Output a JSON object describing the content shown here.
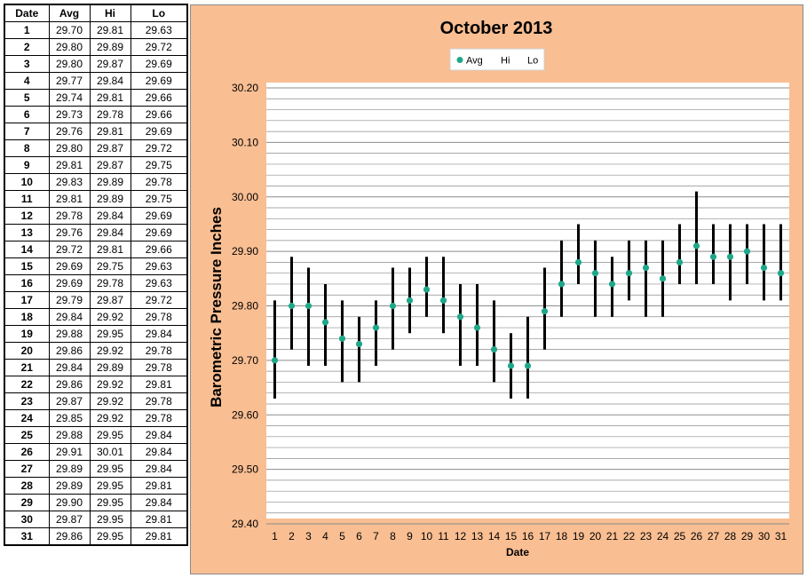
{
  "table": {
    "headers": [
      "Date",
      "Avg",
      "Hi",
      "Lo"
    ],
    "rows": [
      [
        "1",
        "29.70",
        "29.81",
        "29.63"
      ],
      [
        "2",
        "29.80",
        "29.89",
        "29.72"
      ],
      [
        "3",
        "29.80",
        "29.87",
        "29.69"
      ],
      [
        "4",
        "29.77",
        "29.84",
        "29.69"
      ],
      [
        "5",
        "29.74",
        "29.81",
        "29.66"
      ],
      [
        "6",
        "29.73",
        "29.78",
        "29.66"
      ],
      [
        "7",
        "29.76",
        "29.81",
        "29.69"
      ],
      [
        "8",
        "29.80",
        "29.87",
        "29.72"
      ],
      [
        "9",
        "29.81",
        "29.87",
        "29.75"
      ],
      [
        "10",
        "29.83",
        "29.89",
        "29.78"
      ],
      [
        "11",
        "29.81",
        "29.89",
        "29.75"
      ],
      [
        "12",
        "29.78",
        "29.84",
        "29.69"
      ],
      [
        "13",
        "29.76",
        "29.84",
        "29.69"
      ],
      [
        "14",
        "29.72",
        "29.81",
        "29.66"
      ],
      [
        "15",
        "29.69",
        "29.75",
        "29.63"
      ],
      [
        "16",
        "29.69",
        "29.78",
        "29.63"
      ],
      [
        "17",
        "29.79",
        "29.87",
        "29.72"
      ],
      [
        "18",
        "29.84",
        "29.92",
        "29.78"
      ],
      [
        "19",
        "29.88",
        "29.95",
        "29.84"
      ],
      [
        "20",
        "29.86",
        "29.92",
        "29.78"
      ],
      [
        "21",
        "29.84",
        "29.89",
        "29.78"
      ],
      [
        "22",
        "29.86",
        "29.92",
        "29.81"
      ],
      [
        "23",
        "29.87",
        "29.92",
        "29.78"
      ],
      [
        "24",
        "29.85",
        "29.92",
        "29.78"
      ],
      [
        "25",
        "29.88",
        "29.95",
        "29.84"
      ],
      [
        "26",
        "29.91",
        "30.01",
        "29.84"
      ],
      [
        "27",
        "29.89",
        "29.95",
        "29.84"
      ],
      [
        "28",
        "29.89",
        "29.95",
        "29.81"
      ],
      [
        "29",
        "29.90",
        "29.95",
        "29.84"
      ],
      [
        "30",
        "29.87",
        "29.95",
        "29.81"
      ],
      [
        "31",
        "29.86",
        "29.95",
        "29.81"
      ]
    ]
  },
  "chart_data": {
    "type": "scatter",
    "title": "October 2013",
    "xlabel": "Date",
    "ylabel": "Barometric Pressure Inches",
    "x": [
      1,
      2,
      3,
      4,
      5,
      6,
      7,
      8,
      9,
      10,
      11,
      12,
      13,
      14,
      15,
      16,
      17,
      18,
      19,
      20,
      21,
      22,
      23,
      24,
      25,
      26,
      27,
      28,
      29,
      30,
      31
    ],
    "series": [
      {
        "name": "Avg",
        "values": [
          29.7,
          29.8,
          29.8,
          29.77,
          29.74,
          29.73,
          29.76,
          29.8,
          29.81,
          29.83,
          29.81,
          29.78,
          29.76,
          29.72,
          29.69,
          29.69,
          29.79,
          29.84,
          29.88,
          29.86,
          29.84,
          29.86,
          29.87,
          29.85,
          29.88,
          29.91,
          29.89,
          29.89,
          29.9,
          29.87,
          29.86
        ]
      },
      {
        "name": "Hi",
        "values": [
          29.81,
          29.89,
          29.87,
          29.84,
          29.81,
          29.78,
          29.81,
          29.87,
          29.87,
          29.89,
          29.89,
          29.84,
          29.84,
          29.81,
          29.75,
          29.78,
          29.87,
          29.92,
          29.95,
          29.92,
          29.89,
          29.92,
          29.92,
          29.92,
          29.95,
          30.01,
          29.95,
          29.95,
          29.95,
          29.95,
          29.95
        ]
      },
      {
        "name": "Lo",
        "values": [
          29.63,
          29.72,
          29.69,
          29.69,
          29.66,
          29.66,
          29.69,
          29.72,
          29.75,
          29.78,
          29.75,
          29.69,
          29.69,
          29.66,
          29.63,
          29.63,
          29.72,
          29.78,
          29.84,
          29.78,
          29.78,
          29.81,
          29.78,
          29.78,
          29.84,
          29.84,
          29.84,
          29.81,
          29.84,
          29.81,
          29.81
        ]
      }
    ],
    "ylim": [
      29.4,
      30.2
    ],
    "y_ticks": [
      "29.40",
      "29.50",
      "29.60",
      "29.70",
      "29.80",
      "29.90",
      "30.00",
      "30.10",
      "30.20"
    ],
    "x_ticks": [
      "1",
      "2",
      "3",
      "4",
      "5",
      "6",
      "7",
      "8",
      "9",
      "10",
      "11",
      "12",
      "13",
      "14",
      "15",
      "16",
      "17",
      "18",
      "19",
      "20",
      "21",
      "22",
      "23",
      "24",
      "25",
      "26",
      "27",
      "28",
      "29",
      "30",
      "31"
    ],
    "minor_grid_step": 0.02,
    "grid": true,
    "legend_position": "top",
    "colors": {
      "panel_background": "#f9be92",
      "plot_background": "#ffffff",
      "avg_marker": "#1fa78a",
      "hi_lo_bar": "#000000",
      "grid": "#8c8c8c"
    }
  }
}
